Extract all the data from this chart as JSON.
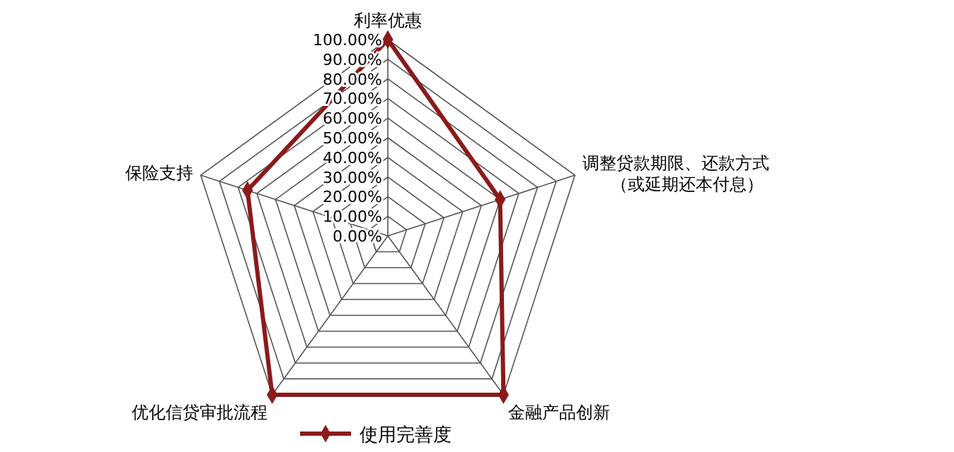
{
  "chart_data": {
    "type": "radar",
    "categories": [
      "利率优惠",
      "调整贷款期限、还款方式（或延期还本付息）",
      "金融产品创新",
      "优化信贷审批流程",
      "保险支持"
    ],
    "series": [
      {
        "name": "使用完善度",
        "color": "#8b1a1a",
        "values": [
          100,
          60,
          100,
          100,
          75
        ]
      }
    ],
    "ylim": [
      0,
      100
    ],
    "yticks": [
      {
        "value": 0,
        "label": "0.00%"
      },
      {
        "value": 10,
        "label": "10.00%"
      },
      {
        "value": 20,
        "label": "20.00%"
      },
      {
        "value": 30,
        "label": "30.00%"
      },
      {
        "value": 40,
        "label": "40.00%"
      },
      {
        "value": 50,
        "label": "50.00%"
      },
      {
        "value": 60,
        "label": "60.00%"
      },
      {
        "value": 70,
        "label": "70.00%"
      },
      {
        "value": 80,
        "label": "80.00%"
      },
      {
        "value": 90,
        "label": "90.00%"
      },
      {
        "value": 100,
        "label": "100.00%"
      }
    ],
    "grid": true,
    "marker": "diamond",
    "legend": "bottom"
  }
}
